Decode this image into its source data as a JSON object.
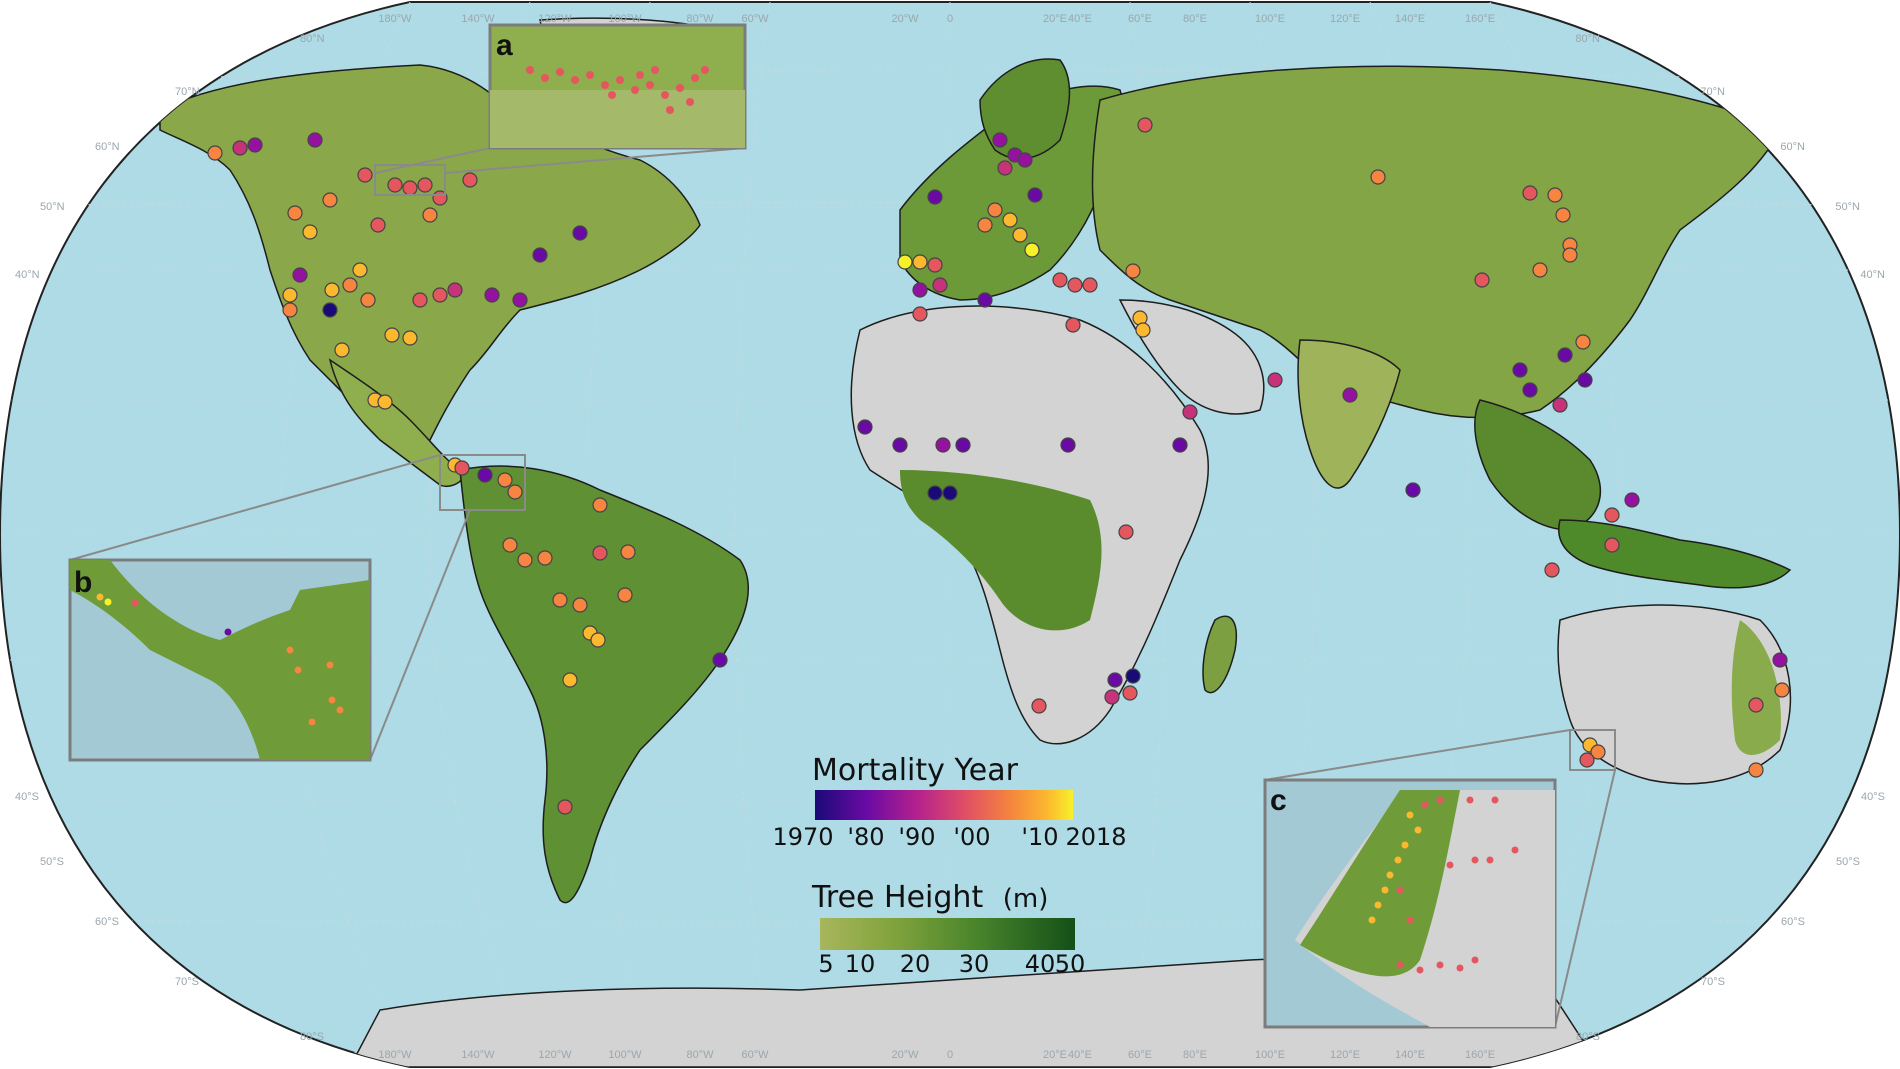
{
  "graticule": {
    "lon_labels": [
      "180°W",
      "140°W",
      "120°W",
      "100°W",
      "80°W",
      "60°W",
      "20°W",
      "0",
      "20°E",
      "40°E",
      "60°E",
      "80°E",
      "100°E",
      "120°E",
      "140°E",
      "160°E"
    ],
    "lat_labels_left": [
      "80°N",
      "70°N",
      "60°N",
      "50°N",
      "40°N",
      "40°S",
      "50°S",
      "60°S",
      "70°S",
      "80°S"
    ],
    "lat_labels_right": [
      "80°N",
      "70°N",
      "60°N",
      "50°N",
      "40°N",
      "40°S",
      "50°S",
      "60°S",
      "70°S",
      "80°S"
    ]
  },
  "insets": {
    "a": {
      "label": "a"
    },
    "b": {
      "label": "b"
    },
    "c": {
      "label": "c"
    }
  },
  "legend_mortality": {
    "title": "Mortality Year",
    "ticks": [
      "1970",
      "'80",
      "'90",
      "'00",
      "'10",
      "2018"
    ],
    "colors": [
      "#1a0a78",
      "#5a0aa0",
      "#9512a1",
      "#c7337a",
      "#e5575f",
      "#f58540",
      "#fcb82e",
      "#f7f12a"
    ]
  },
  "legend_height": {
    "title": "Tree Height",
    "unit": "(m)",
    "ticks": [
      "5",
      "10",
      "20",
      "30",
      "40",
      "50"
    ],
    "colors": [
      "#a7b55a",
      "#7fa23c",
      "#4f8a2c",
      "#2b6e22",
      "#164f1a"
    ]
  },
  "colors": {
    "ocean": "#aedbe6",
    "land": "#d3d3d3",
    "forest": "#7c9c3c",
    "border": "#1d1d1d",
    "inset_frame": "#7c7c7c"
  }
}
